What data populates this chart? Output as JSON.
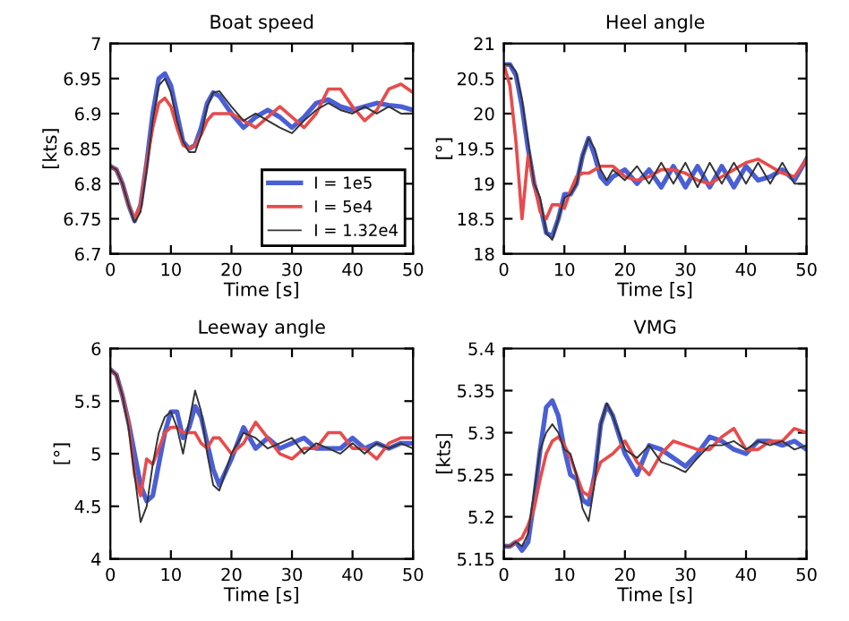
{
  "chart_data": [
    {
      "type": "line",
      "title": "Boat speed",
      "xlabel": "Time [s]",
      "ylabel": "[kts]",
      "xlim": [
        0,
        50
      ],
      "xticks": [
        0,
        10,
        20,
        30,
        40,
        50
      ],
      "ylim": [
        6.7,
        7
      ],
      "yticks": [
        6.7,
        6.75,
        6.8,
        6.85,
        6.9,
        6.95,
        7
      ],
      "legend": "bottom right",
      "grid": false,
      "line_style": "solid",
      "x": [
        0,
        1,
        2,
        3,
        4,
        5,
        6,
        7,
        8,
        9,
        10,
        11,
        12,
        13,
        14,
        15,
        16,
        17,
        18,
        20,
        22,
        24,
        26,
        28,
        30,
        32,
        34,
        36,
        38,
        40,
        42,
        44,
        46,
        48,
        50
      ],
      "series": [
        {
          "name": "I = 1e5",
          "color": "#4a5fd6",
          "values": [
            6.825,
            6.82,
            6.8,
            6.77,
            6.747,
            6.77,
            6.83,
            6.9,
            6.95,
            6.957,
            6.94,
            6.9,
            6.86,
            6.85,
            6.855,
            6.88,
            6.915,
            6.93,
            6.925,
            6.9,
            6.88,
            6.895,
            6.905,
            6.895,
            6.88,
            6.895,
            6.915,
            6.92,
            6.91,
            6.905,
            6.91,
            6.915,
            6.912,
            6.91,
            6.905
          ]
        },
        {
          "name": "I = 5e4",
          "color": "#e84b4b",
          "values": [
            6.825,
            6.82,
            6.8,
            6.77,
            6.75,
            6.77,
            6.83,
            6.88,
            6.915,
            6.922,
            6.91,
            6.88,
            6.855,
            6.85,
            6.855,
            6.87,
            6.89,
            6.9,
            6.9,
            6.9,
            6.89,
            6.88,
            6.895,
            6.91,
            6.895,
            6.88,
            6.9,
            6.935,
            6.935,
            6.91,
            6.89,
            6.905,
            6.935,
            6.942,
            6.93
          ]
        },
        {
          "name": "I = 1.32e4",
          "color": "#333333",
          "values": [
            6.825,
            6.82,
            6.8,
            6.77,
            6.745,
            6.76,
            6.82,
            6.89,
            6.94,
            6.95,
            6.93,
            6.89,
            6.86,
            6.845,
            6.845,
            6.87,
            6.91,
            6.93,
            6.932,
            6.91,
            6.89,
            6.9,
            6.89,
            6.88,
            6.872,
            6.89,
            6.905,
            6.915,
            6.905,
            6.9,
            6.91,
            6.9,
            6.91,
            6.9,
            6.9
          ]
        }
      ]
    },
    {
      "type": "line",
      "title": "Heel angle",
      "xlabel": "Time [s]",
      "ylabel": "[°]",
      "xlim": [
        0,
        50
      ],
      "xticks": [
        0,
        10,
        20,
        30,
        40,
        50
      ],
      "ylim": [
        18,
        21
      ],
      "yticks": [
        18,
        18.5,
        19,
        19.5,
        20,
        20.5,
        21
      ],
      "grid": false,
      "line_style": "solid",
      "x": [
        0,
        1,
        2,
        3,
        4,
        5,
        6,
        7,
        8,
        9,
        10,
        11,
        12,
        13,
        14,
        15,
        16,
        17,
        18,
        20,
        22,
        24,
        26,
        28,
        30,
        32,
        34,
        36,
        38,
        40,
        42,
        44,
        46,
        48,
        50
      ],
      "series": [
        {
          "color": "#4a5fd6",
          "values": [
            20.7,
            20.7,
            20.55,
            20.1,
            19.5,
            19.0,
            18.7,
            18.3,
            18.25,
            18.5,
            18.85,
            18.85,
            19.0,
            19.4,
            19.65,
            19.4,
            19.1,
            19.0,
            19.1,
            19.2,
            19.0,
            19.2,
            18.95,
            19.25,
            18.95,
            19.25,
            18.95,
            19.25,
            18.95,
            19.25,
            19.05,
            19.1,
            19.2,
            19.05,
            19.35
          ]
        },
        {
          "color": "#e84b4b",
          "values": [
            20.7,
            20.4,
            19.6,
            18.5,
            19.4,
            19.0,
            18.6,
            18.5,
            18.7,
            18.7,
            18.65,
            18.9,
            19.1,
            19.15,
            19.15,
            19.2,
            19.25,
            19.25,
            19.25,
            19.1,
            19.05,
            19.1,
            19.2,
            19.2,
            19.15,
            19.05,
            19.0,
            19.1,
            19.2,
            19.3,
            19.35,
            19.25,
            19.15,
            19.1,
            19.35
          ]
        },
        {
          "color": "#333333",
          "values": [
            20.7,
            20.7,
            20.6,
            20.2,
            19.6,
            19.0,
            18.8,
            18.3,
            18.2,
            18.5,
            18.8,
            18.85,
            19.0,
            19.4,
            19.65,
            19.5,
            19.2,
            19.05,
            19.2,
            19.05,
            19.25,
            19.0,
            19.3,
            19.0,
            19.3,
            18.95,
            19.3,
            19.0,
            19.3,
            19.0,
            19.3,
            19.0,
            19.3,
            19.0,
            19.0
          ]
        }
      ]
    },
    {
      "type": "line",
      "title": "Leeway angle",
      "xlabel": "Time [s]",
      "ylabel": "[°]",
      "xlim": [
        0,
        50
      ],
      "xticks": [
        0,
        10,
        20,
        30,
        40,
        50
      ],
      "ylim": [
        4,
        6
      ],
      "yticks": [
        4,
        4.5,
        5,
        5.5,
        6
      ],
      "grid": false,
      "line_style": "solid",
      "x": [
        0,
        1,
        2,
        3,
        4,
        5,
        6,
        7,
        8,
        9,
        10,
        11,
        12,
        13,
        14,
        15,
        16,
        17,
        18,
        20,
        22,
        24,
        26,
        28,
        30,
        32,
        34,
        36,
        38,
        40,
        42,
        44,
        46,
        48,
        50
      ],
      "series": [
        {
          "color": "#4a5fd6",
          "values": [
            5.8,
            5.75,
            5.55,
            5.3,
            5.0,
            4.7,
            4.55,
            4.6,
            4.9,
            5.2,
            5.4,
            5.4,
            5.15,
            5.25,
            5.45,
            5.35,
            5.1,
            4.85,
            4.7,
            4.95,
            5.25,
            5.05,
            5.15,
            5.05,
            5.1,
            5.15,
            5.05,
            5.05,
            5.05,
            5.15,
            5.05,
            5.1,
            5.05,
            5.1,
            5.1
          ]
        },
        {
          "color": "#e84b4b",
          "values": [
            5.8,
            5.75,
            5.55,
            5.3,
            4.8,
            4.6,
            4.95,
            4.9,
            5.05,
            5.2,
            5.25,
            5.25,
            5.2,
            5.2,
            5.2,
            5.1,
            5.05,
            5.15,
            5.15,
            5.0,
            5.1,
            5.3,
            5.15,
            5.0,
            4.95,
            5.05,
            5.05,
            5.2,
            5.2,
            5.05,
            5.05,
            4.95,
            5.1,
            5.15,
            5.15
          ]
        },
        {
          "color": "#333333",
          "values": [
            5.8,
            5.75,
            5.55,
            5.25,
            4.8,
            4.35,
            4.5,
            4.9,
            5.2,
            5.35,
            5.4,
            5.25,
            5.0,
            5.3,
            5.6,
            5.4,
            5.0,
            4.7,
            4.65,
            5.0,
            5.2,
            5.15,
            5.05,
            5.1,
            5.15,
            5.0,
            5.1,
            5.05,
            5.0,
            5.1,
            5.0,
            5.1,
            5.05,
            5.1,
            5.05
          ]
        }
      ]
    },
    {
      "type": "line",
      "title": "VMG",
      "xlabel": "Time [s]",
      "ylabel": "[kts]",
      "xlim": [
        0,
        50
      ],
      "xticks": [
        0,
        10,
        20,
        30,
        40,
        50
      ],
      "ylim": [
        5.15,
        5.4
      ],
      "yticks": [
        5.15,
        5.2,
        5.25,
        5.3,
        5.35,
        5.4
      ],
      "grid": false,
      "line_style": "solid",
      "x": [
        0,
        1,
        2,
        3,
        4,
        5,
        6,
        7,
        8,
        9,
        10,
        11,
        12,
        13,
        14,
        15,
        16,
        17,
        18,
        20,
        22,
        24,
        26,
        28,
        30,
        32,
        34,
        36,
        38,
        40,
        42,
        44,
        46,
        48,
        50
      ],
      "series": [
        {
          "color": "#4a5fd6",
          "values": [
            5.165,
            5.165,
            5.17,
            5.16,
            5.17,
            5.22,
            5.28,
            5.33,
            5.338,
            5.32,
            5.28,
            5.25,
            5.245,
            5.22,
            5.215,
            5.25,
            5.31,
            5.333,
            5.32,
            5.275,
            5.25,
            5.285,
            5.28,
            5.27,
            5.26,
            5.275,
            5.295,
            5.29,
            5.28,
            5.275,
            5.29,
            5.29,
            5.285,
            5.29,
            5.28
          ]
        },
        {
          "color": "#e84b4b",
          "values": [
            5.165,
            5.165,
            5.17,
            5.175,
            5.19,
            5.21,
            5.245,
            5.275,
            5.29,
            5.295,
            5.285,
            5.27,
            5.25,
            5.23,
            5.225,
            5.245,
            5.265,
            5.27,
            5.275,
            5.29,
            5.265,
            5.25,
            5.275,
            5.29,
            5.285,
            5.28,
            5.28,
            5.295,
            5.305,
            5.28,
            5.28,
            5.29,
            5.29,
            5.305,
            5.3
          ]
        },
        {
          "color": "#333333",
          "values": [
            5.165,
            5.165,
            5.17,
            5.165,
            5.18,
            5.23,
            5.28,
            5.3,
            5.31,
            5.3,
            5.28,
            5.275,
            5.25,
            5.21,
            5.195,
            5.24,
            5.31,
            5.335,
            5.32,
            5.28,
            5.27,
            5.285,
            5.265,
            5.26,
            5.253,
            5.27,
            5.285,
            5.285,
            5.29,
            5.28,
            5.29,
            5.285,
            5.29,
            5.28,
            5.285
          ]
        }
      ]
    }
  ]
}
